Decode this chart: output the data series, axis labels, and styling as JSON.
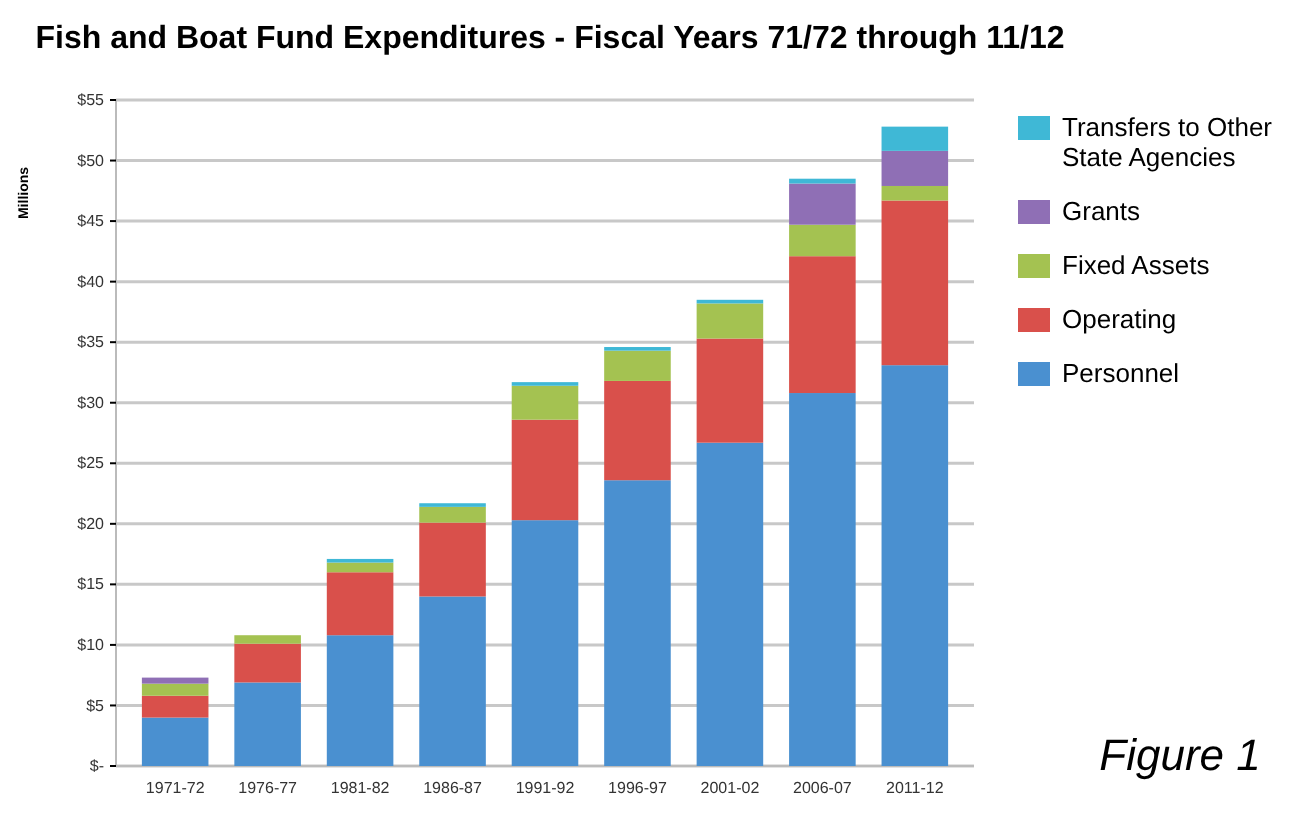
{
  "chart_data": {
    "type": "bar",
    "title": "Fish and Boat Fund Expenditures - Fiscal Years 71/72 through 11/12",
    "ylabel": "Millions",
    "categories": [
      "1971-72",
      "1976-77",
      "1981-82",
      "1986-87",
      "1991-92",
      "1996-97",
      "2001-02",
      "2006-07",
      "2011-12"
    ],
    "stacked": true,
    "grid": "y",
    "legend": "right",
    "ylim": [
      0,
      55
    ],
    "yticks": [
      {
        "value": 0,
        "label": "$-"
      },
      {
        "value": 5,
        "label": "$5"
      },
      {
        "value": 10,
        "label": "$10"
      },
      {
        "value": 15,
        "label": "$15"
      },
      {
        "value": 20,
        "label": "$20"
      },
      {
        "value": 25,
        "label": "$25"
      },
      {
        "value": 30,
        "label": "$30"
      },
      {
        "value": 35,
        "label": "$35"
      },
      {
        "value": 40,
        "label": "$40"
      },
      {
        "value": 45,
        "label": "$45"
      },
      {
        "value": 50,
        "label": "$50"
      },
      {
        "value": 55,
        "label": "$55"
      }
    ],
    "series": [
      {
        "name": "Personnel",
        "color": "#4a90d0",
        "values": [
          4.0,
          6.9,
          10.8,
          14.0,
          20.3,
          23.6,
          26.7,
          30.8,
          33.1
        ]
      },
      {
        "name": "Operating",
        "color": "#d9504b",
        "values": [
          1.8,
          3.2,
          5.2,
          6.1,
          8.3,
          8.2,
          8.6,
          11.3,
          13.6
        ]
      },
      {
        "name": "Fixed Assets",
        "color": "#a4c251",
        "values": [
          1.0,
          0.7,
          0.8,
          1.3,
          2.8,
          2.5,
          2.9,
          2.6,
          1.2
        ]
      },
      {
        "name": "Grants",
        "color": "#8f6fb5",
        "values": [
          0.5,
          0,
          0,
          0,
          0,
          0,
          0,
          3.4,
          2.9
        ]
      },
      {
        "name": "Transfers to Other State Agencies",
        "color": "#3fb8d6",
        "values": [
          0,
          0,
          0.3,
          0.3,
          0.3,
          0.3,
          0.3,
          0.4,
          2.0
        ]
      }
    ],
    "annotations": [
      "Figure 1"
    ]
  }
}
